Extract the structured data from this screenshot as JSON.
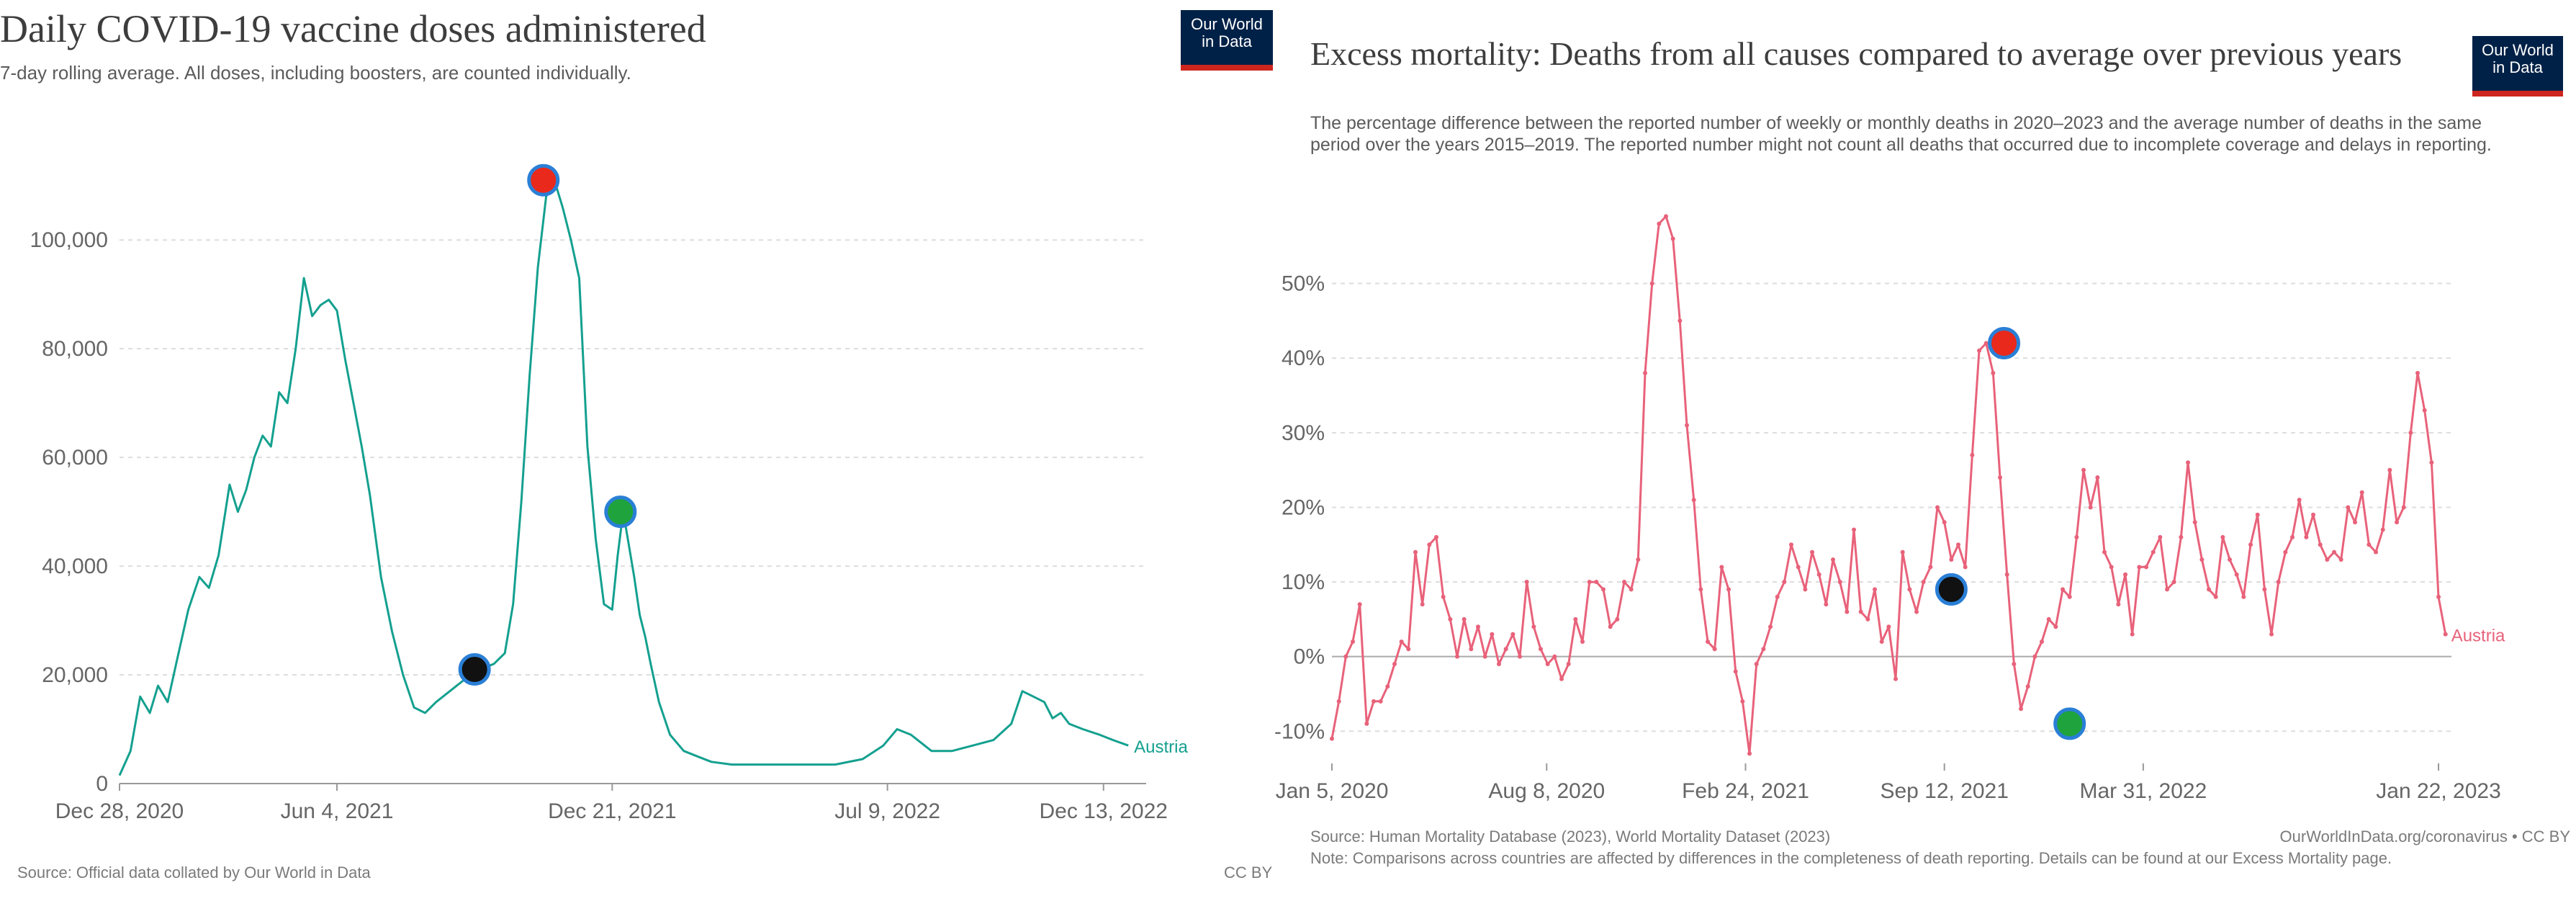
{
  "chart_data": [
    {
      "type": "line",
      "title": "Daily COVID-19 vaccine doses administered",
      "subtitle": "7-day rolling average. All doses, including boosters, are counted individually.",
      "logo": [
        "Our World",
        "in Data"
      ],
      "x_ticks": [
        "Dec 28, 2020",
        "Jun 4, 2021",
        "Dec 21, 2021",
        "Jul 9, 2022",
        "Dec 13, 2022"
      ],
      "x_tick_days": [
        0,
        158,
        358,
        558,
        715
      ],
      "y_ticks": [
        "0",
        "20,000",
        "40,000",
        "60,000",
        "80,000",
        "100,000"
      ],
      "ylim": [
        0,
        115000
      ],
      "xlim_days": [
        0,
        746
      ],
      "series": [
        {
          "name": "Austria",
          "color": "#14a08f",
          "x_days": [
            0,
            8,
            15,
            22,
            28,
            35,
            42,
            50,
            58,
            65,
            72,
            80,
            86,
            92,
            98,
            104,
            110,
            116,
            122,
            128,
            134,
            140,
            146,
            152,
            158,
            164,
            170,
            176,
            182,
            190,
            198,
            206,
            214,
            222,
            230,
            240,
            250,
            262,
            272,
            280,
            286,
            292,
            298,
            304,
            310,
            316,
            322,
            328,
            334,
            340,
            346,
            352,
            358,
            362,
            366,
            370,
            374,
            378,
            382,
            386,
            392,
            400,
            410,
            420,
            430,
            445,
            460,
            480,
            500,
            520,
            540,
            555,
            565,
            575,
            590,
            605,
            620,
            635,
            648,
            656,
            664,
            672,
            678,
            684,
            690,
            700,
            712,
            722,
            733
          ],
          "y": [
            1500,
            6000,
            16000,
            13000,
            18000,
            15000,
            23000,
            32000,
            38000,
            36000,
            42000,
            55000,
            50000,
            54000,
            60000,
            64000,
            62000,
            72000,
            70000,
            80000,
            93000,
            86000,
            88000,
            89000,
            87000,
            78000,
            70000,
            62000,
            53000,
            38000,
            28000,
            20000,
            14000,
            13000,
            15000,
            17000,
            19000,
            21000,
            22000,
            24000,
            33000,
            52000,
            75000,
            95000,
            108000,
            111000,
            106000,
            100000,
            93000,
            62000,
            45000,
            33000,
            32000,
            42000,
            50000,
            44000,
            38000,
            31000,
            27000,
            22000,
            15000,
            9000,
            6000,
            5000,
            4000,
            3500,
            3500,
            3500,
            3500,
            3500,
            4500,
            7000,
            10000,
            9000,
            6000,
            6000,
            7000,
            8000,
            11000,
            17000,
            16000,
            15000,
            12000,
            13000,
            11000,
            10000,
            9000,
            8000,
            7000
          ]
        }
      ],
      "markers": [
        {
          "color": "#e8291c",
          "x_day": 308,
          "y": 111000
        },
        {
          "color": "#1fa33d",
          "x_day": 364,
          "y": 50000
        },
        {
          "color": "#111111",
          "x_day": 258,
          "y": 21000
        }
      ],
      "source": "Source: Official data collated by Our World in Data",
      "license": "CC BY",
      "grid": true
    },
    {
      "type": "line",
      "title": "Excess mortality: Deaths from all causes compared to average over previous years",
      "subtitle": "The percentage difference between the reported number of weekly or monthly deaths in 2020–2023 and the average number of deaths in the same period over the years 2015–2019. The reported number might not count all deaths that occurred due to incomplete coverage and delays in reporting.",
      "logo": [
        "Our World",
        "in Data"
      ],
      "x_ticks": [
        "Jan 5, 2020",
        "Aug 8, 2020",
        "Feb 24, 2021",
        "Sep 12, 2021",
        "Mar 31, 2022",
        "Jan 22, 2023"
      ],
      "x_tick_days": [
        0,
        216,
        416,
        616,
        816,
        1113
      ],
      "y_ticks": [
        "-10%",
        "0%",
        "10%",
        "20%",
        "30%",
        "40%",
        "50%"
      ],
      "ylim": [
        -12,
        60
      ],
      "xlim_days": [
        0,
        1126
      ],
      "series": [
        {
          "name": "Austria",
          "color": "#e8627a",
          "x_days": [
            0,
            7,
            14,
            21,
            28,
            35,
            42,
            49,
            56,
            63,
            70,
            77,
            84,
            91,
            98,
            105,
            112,
            119,
            126,
            133,
            140,
            147,
            154,
            161,
            168,
            175,
            182,
            189,
            196,
            203,
            210,
            217,
            224,
            231,
            238,
            245,
            252,
            259,
            266,
            273,
            280,
            287,
            294,
            301,
            308,
            315,
            322,
            329,
            336,
            343,
            350,
            357,
            364,
            371,
            378,
            385,
            392,
            399,
            406,
            413,
            420,
            427,
            434,
            441,
            448,
            455,
            462,
            469,
            476,
            483,
            490,
            497,
            504,
            511,
            518,
            525,
            532,
            539,
            546,
            553,
            560,
            567,
            574,
            581,
            588,
            595,
            602,
            609,
            616,
            623,
            630,
            637,
            644,
            651,
            658,
            665,
            672,
            679,
            686,
            693,
            700,
            707,
            714,
            721,
            728,
            735,
            742,
            749,
            756,
            763,
            770,
            777,
            784,
            791,
            798,
            805,
            812,
            819,
            826,
            833,
            840,
            847,
            854,
            861,
            868,
            875,
            882,
            889,
            896,
            903,
            910,
            917,
            924,
            931,
            938,
            945,
            952,
            959,
            966,
            973,
            980,
            987,
            994,
            1001,
            1008,
            1015,
            1022,
            1029,
            1036,
            1043,
            1050,
            1057,
            1064,
            1071,
            1078,
            1085,
            1092,
            1099,
            1106,
            1113,
            1120
          ],
          "y": [
            -11,
            -6,
            0,
            2,
            7,
            -9,
            -6,
            -6,
            -4,
            -1,
            2,
            1,
            14,
            7,
            15,
            16,
            8,
            5,
            0,
            5,
            1,
            4,
            0,
            3,
            -1,
            1,
            3,
            0,
            10,
            4,
            1,
            -1,
            0,
            -3,
            -1,
            5,
            2,
            10,
            10,
            9,
            4,
            5,
            10,
            9,
            13,
            38,
            50,
            58,
            59,
            56,
            45,
            31,
            21,
            9,
            2,
            1,
            12,
            9,
            -2,
            -6,
            -13,
            -1,
            1,
            4,
            8,
            10,
            15,
            12,
            9,
            14,
            11,
            7,
            13,
            10,
            6,
            17,
            6,
            5,
            9,
            2,
            4,
            -3,
            14,
            9,
            6,
            10,
            12,
            20,
            18,
            13,
            15,
            12,
            27,
            41,
            42,
            38,
            24,
            11,
            -1,
            -7,
            -4,
            0,
            2,
            5,
            4,
            9,
            8,
            16,
            25,
            20,
            24,
            14,
            12,
            7,
            11,
            3,
            12,
            12,
            14,
            16,
            9,
            10,
            16,
            26,
            18,
            13,
            9,
            8,
            16,
            13,
            11,
            8,
            15,
            19,
            9,
            3,
            10,
            14,
            16,
            21,
            16,
            19,
            15,
            13,
            14,
            13,
            20,
            18,
            22,
            15,
            14,
            17,
            25,
            18,
            20,
            30,
            38,
            33,
            26,
            8,
            3
          ],
          "label_color": "#e8627a"
        }
      ],
      "markers": [
        {
          "color": "#e8291c",
          "x_day": 676,
          "y": 42
        },
        {
          "color": "#111111",
          "x_day": 623,
          "y": 9
        },
        {
          "color": "#1fa33d",
          "x_day": 742,
          "y": -9
        }
      ],
      "source": "Source: Human Mortality Database (2023), World Mortality Dataset (2023)",
      "credit": "OurWorldInData.org/coronavirus • CC BY",
      "note": "Note: Comparisons across countries are affected by differences in the completeness of death reporting. Details can be found at our Excess Mortality page.",
      "grid": true
    }
  ]
}
